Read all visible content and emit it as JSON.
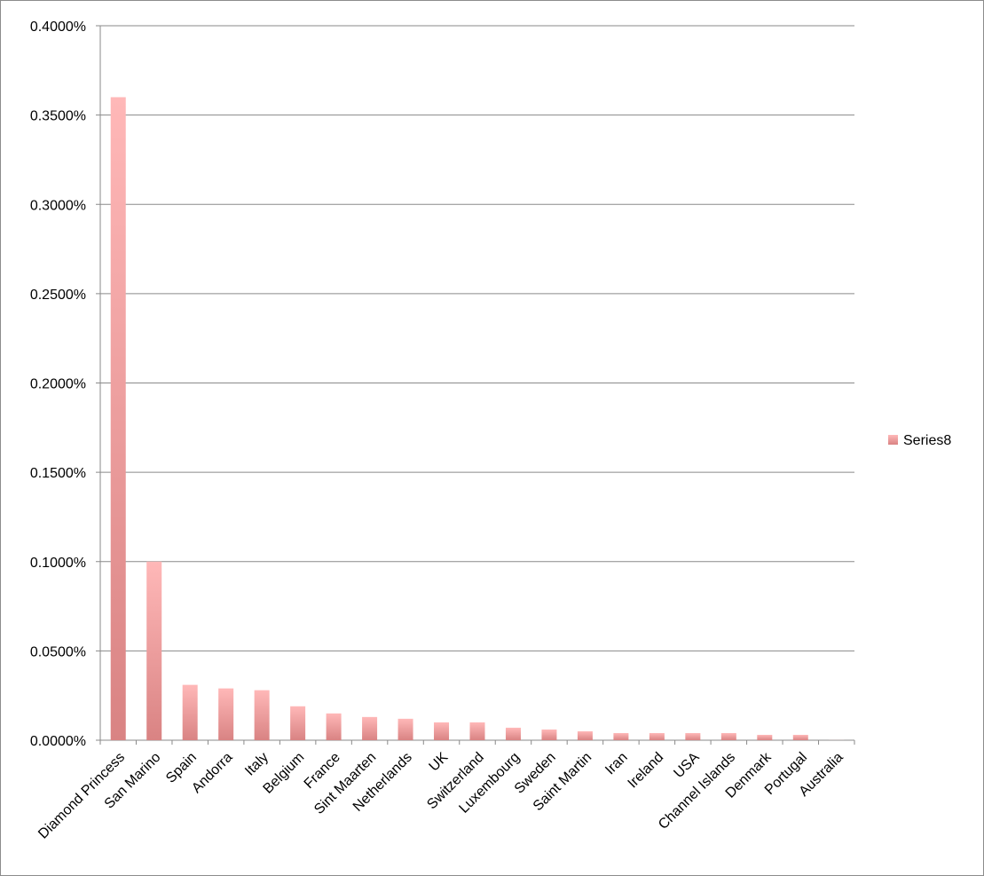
{
  "chart_data": {
    "type": "bar",
    "title": "",
    "xlabel": "",
    "ylabel": "",
    "ylim": [
      0,
      0.004
    ],
    "yticks": [
      "0.0000%",
      "0.0500%",
      "0.1000%",
      "0.1500%",
      "0.2000%",
      "0.2500%",
      "0.3000%",
      "0.3500%",
      "0.4000%"
    ],
    "grid": true,
    "legend_position": "right",
    "categories": [
      "Diamond Princess",
      "San Marino",
      "Spain",
      "Andorra",
      "Italy",
      "Belgium",
      "France",
      "Sint Maarten",
      "Netherlands",
      "UK",
      "Switzerland",
      "Luxembourg",
      "Sweden",
      "Saint Martin",
      "Iran",
      "Ireland",
      "USA",
      "Channel Islands",
      "Denmark",
      "Portugal",
      "Australia"
    ],
    "series": [
      {
        "name": "Series8",
        "color": "#f4a3a3",
        "values": [
          0.0036,
          0.001,
          0.00031,
          0.00029,
          0.00028,
          0.00019,
          0.00015,
          0.00013,
          0.00012,
          0.0001,
          0.0001,
          7e-05,
          6e-05,
          5e-05,
          4e-05,
          4e-05,
          4e-05,
          4e-05,
          3e-05,
          3e-05,
          5e-07
        ]
      }
    ]
  }
}
